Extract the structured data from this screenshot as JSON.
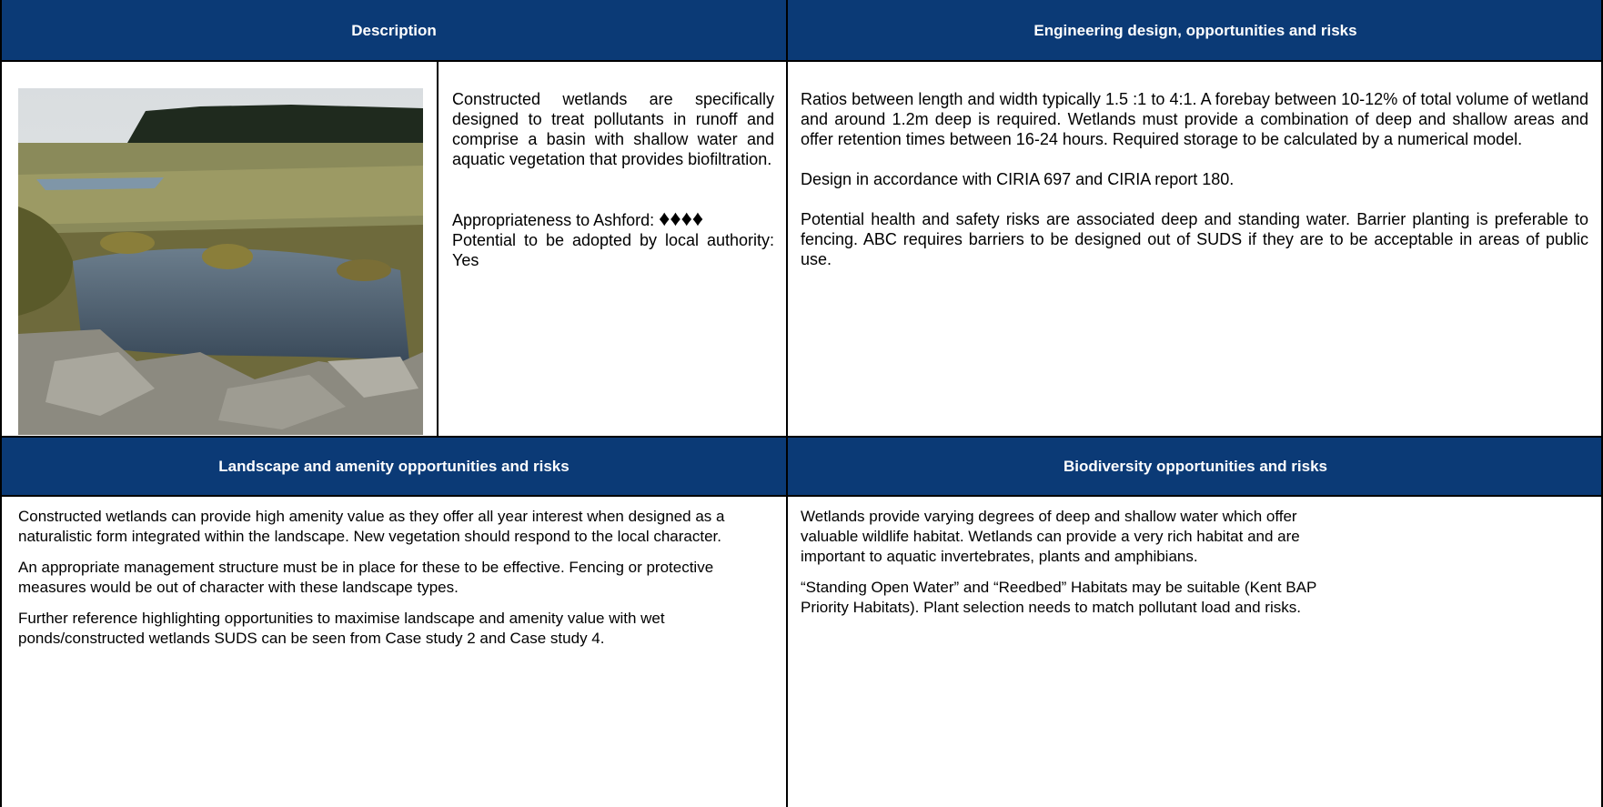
{
  "description": {
    "header": "Description",
    "paragraphs": [
      "Constructed wetlands are specifically designed to treat pollutants in runoff and comprise a basin with shallow water and aquatic vegetation that provides biofiltration."
    ],
    "appropriateness_label": "Appropriateness to Ashford:",
    "appropriateness_rating": "♦♦♦♦",
    "adoption": "Potential to be adopted by local authority: Yes"
  },
  "engineering": {
    "header": "Engineering design, opportunities and risks",
    "paragraphs": [
      "Ratios between length and width typically 1.5 :1 to 4:1. A forebay between 10-12% of total volume of wetland and around 1.2m deep is required. Wetlands must provide a combination of deep and shallow areas and offer retention times between 16-24 hours.  Required storage to be calculated by a numerical model.",
      "Design in accordance with CIRIA 697 and CIRIA report 180.",
      "Potential health and safety risks are associated deep and standing water. Barrier planting is preferable to fencing.  ABC requires barriers to be designed out of SUDS if they are to be acceptable in areas of public use."
    ]
  },
  "landscape": {
    "header": "Landscape and amenity opportunities and risks",
    "paragraphs": [
      "Constructed wetlands can provide high amenity value as they offer all year interest when designed as a naturalistic form integrated within the landscape. New vegetation should respond to the local character.",
      "An appropriate management structure must be in place for these to be effective. Fencing or protective measures would be out of character with these landscape types.",
      "Further reference highlighting opportunities to maximise landscape and amenity value with wet ponds/constructed wetlands SUDS can be seen from Case study 2 and Case study 4."
    ]
  },
  "biodiversity": {
    "header": "Biodiversity opportunities and risks",
    "paragraphs": [
      "Wetlands provide varying degrees of deep and shallow water which offer valuable wildlife habitat. Wetlands can provide a very rich habitat and are important to aquatic invertebrates, plants and amphibians.",
      "“Standing Open Water” and “Reedbed” Habitats may be suitable (Kent BAP Priority Habitats). Plant selection needs to match pollutant load and risks."
    ]
  }
}
